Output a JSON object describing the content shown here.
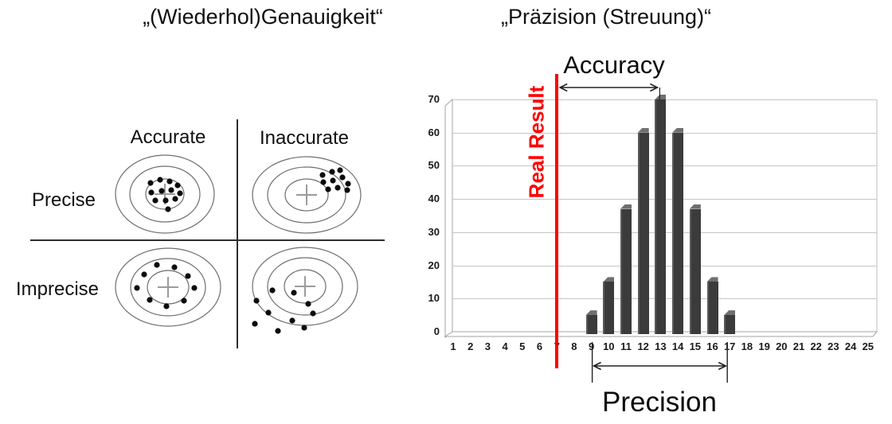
{
  "titles": {
    "left": "„(Wiederhol)Genauigkeit“",
    "right": "„Präzision (Streuung)“"
  },
  "quadrant_diagram": {
    "column_labels": [
      "Accurate",
      "Inaccurate"
    ],
    "row_labels": [
      "Precise",
      "Imprecise"
    ],
    "targets": [
      {
        "name": "precise-accurate",
        "dots": [
          [
            -18,
            -14
          ],
          [
            -6,
            -18
          ],
          [
            6,
            -16
          ],
          [
            16,
            -11
          ],
          [
            -17,
            -2
          ],
          [
            -4,
            -4
          ],
          [
            8,
            -5
          ],
          [
            19,
            -1
          ],
          [
            -12,
            8
          ],
          [
            1,
            8
          ],
          [
            13,
            6
          ],
          [
            4,
            19
          ]
        ]
      },
      {
        "name": "precise-inaccurate",
        "dots": [
          [
            20,
            -25
          ],
          [
            32,
            -29
          ],
          [
            42,
            -31
          ],
          [
            21,
            -16
          ],
          [
            33,
            -18
          ],
          [
            45,
            -22
          ],
          [
            52,
            -14
          ],
          [
            27,
            -7
          ],
          [
            39,
            -9
          ],
          [
            51,
            -6
          ]
        ]
      },
      {
        "name": "imprecise-accurate",
        "dots": [
          [
            -14,
            -28
          ],
          [
            8,
            -25
          ],
          [
            25,
            -14
          ],
          [
            33,
            1
          ],
          [
            20,
            17
          ],
          [
            -2,
            24
          ],
          [
            -23,
            16
          ],
          [
            -39,
            1
          ],
          [
            -30,
            -16
          ]
        ]
      },
      {
        "name": "imprecise-inaccurate",
        "dots": [
          [
            -41,
            5
          ],
          [
            -61,
            18
          ],
          [
            -14,
            8
          ],
          [
            4,
            22
          ],
          [
            -46,
            33
          ],
          [
            10,
            34
          ],
          [
            -16,
            43
          ],
          [
            -1,
            52
          ],
          [
            -63,
            47
          ],
          [
            -34,
            56
          ]
        ]
      }
    ]
  },
  "chart_data": {
    "type": "bar",
    "title": "",
    "xlabel": "",
    "ylabel": "",
    "x_categories": [
      "1",
      "2",
      "3",
      "4",
      "5",
      "6",
      "7",
      "8",
      "9",
      "10",
      "11",
      "12",
      "13",
      "14",
      "15",
      "16",
      "17",
      "18",
      "19",
      "20",
      "21",
      "22",
      "23",
      "24",
      "25"
    ],
    "bars": {
      "categories": [
        "9",
        "10",
        "11",
        "12",
        "13",
        "14",
        "15",
        "16",
        "17"
      ],
      "values": [
        5,
        15,
        37,
        60,
        70,
        60,
        37,
        15,
        5
      ]
    },
    "yticks": [
      0,
      10,
      20,
      30,
      40,
      50,
      60,
      70
    ],
    "ylim": [
      0,
      70
    ],
    "grid": true,
    "legend": false,
    "bar_color": "#3b3b3b",
    "annotations": {
      "accuracy": {
        "label": "Accuracy",
        "from_category": 7,
        "to_category": 13
      },
      "precision": {
        "label": "Precision",
        "from_category": 9,
        "to_category": 17
      },
      "real_result": {
        "label": "Real Result",
        "category": 7,
        "color": "#ff0000"
      }
    }
  }
}
